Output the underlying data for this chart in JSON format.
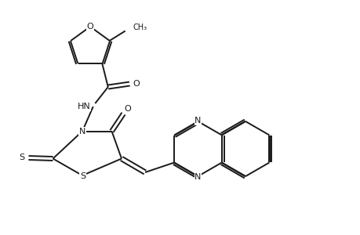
{
  "bg_color": "#ffffff",
  "line_color": "#1a1a1a",
  "lw": 1.4,
  "lw_thin": 1.0,
  "fs": 8.0,
  "fig_width": 4.6,
  "fig_height": 3.0,
  "dpi": 100,
  "xlim": [
    0,
    9.2
  ],
  "ylim": [
    0,
    6.0
  ]
}
